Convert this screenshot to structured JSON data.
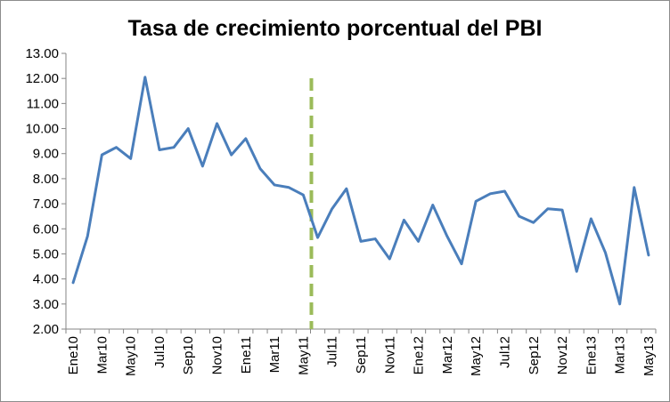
{
  "chart_data": {
    "type": "line",
    "title": "Tasa de crecimiento porcentual del PBI",
    "xlabel": "",
    "ylabel": "",
    "ylim": [
      2.0,
      13.0
    ],
    "yticks": [
      "2.00",
      "3.00",
      "4.00",
      "5.00",
      "6.00",
      "7.00",
      "8.00",
      "9.00",
      "10.00",
      "11.00",
      "12.00",
      "13.00"
    ],
    "x": [
      "Ene10",
      "Feb10",
      "Mar10",
      "Abr10",
      "May10",
      "Jun10",
      "Jul10",
      "Ago10",
      "Sep10",
      "Oct10",
      "Nov10",
      "Dic10",
      "Ene11",
      "Feb11",
      "Mar11",
      "Abr11",
      "May11",
      "Jun11",
      "Jul11",
      "Ago11",
      "Sep11",
      "Oct11",
      "Nov11",
      "Dic11",
      "Ene12",
      "Feb12",
      "Mar12",
      "Abr12",
      "May12",
      "Jun12",
      "Jul12",
      "Ago12",
      "Sep12",
      "Oct12",
      "Nov12",
      "Dic12",
      "Ene13",
      "Feb13",
      "Mar13",
      "Abr13",
      "May13"
    ],
    "xtick_labels": [
      "Ene10",
      "Mar10",
      "May10",
      "Jul10",
      "Sep10",
      "Nov10",
      "Ene11",
      "Mar11",
      "May11",
      "Jul11",
      "Sep11",
      "Nov11",
      "Ene12",
      "Mar12",
      "May12",
      "Jul12",
      "Sep12",
      "Nov12",
      "Ene13",
      "Mar13",
      "May13"
    ],
    "series": [
      {
        "values": [
          3.85,
          5.7,
          8.95,
          9.25,
          8.8,
          12.05,
          9.15,
          9.25,
          10.0,
          8.5,
          10.2,
          8.95,
          9.6,
          8.4,
          7.75,
          7.65,
          7.35,
          5.65,
          6.8,
          7.6,
          5.5,
          5.6,
          4.8,
          6.35,
          5.5,
          6.95,
          5.7,
          4.6,
          7.1,
          7.4,
          7.5,
          6.5,
          6.25,
          6.8,
          6.75,
          4.3,
          6.4,
          5.05,
          3.0,
          7.65,
          4.95
        ],
        "color": "#4a7ebb"
      }
    ],
    "annotations": [
      {
        "type": "vertical-dashed-line",
        "x": "Jun11",
        "color": "#9bbb59"
      }
    ],
    "grid": false,
    "legend": "none"
  }
}
